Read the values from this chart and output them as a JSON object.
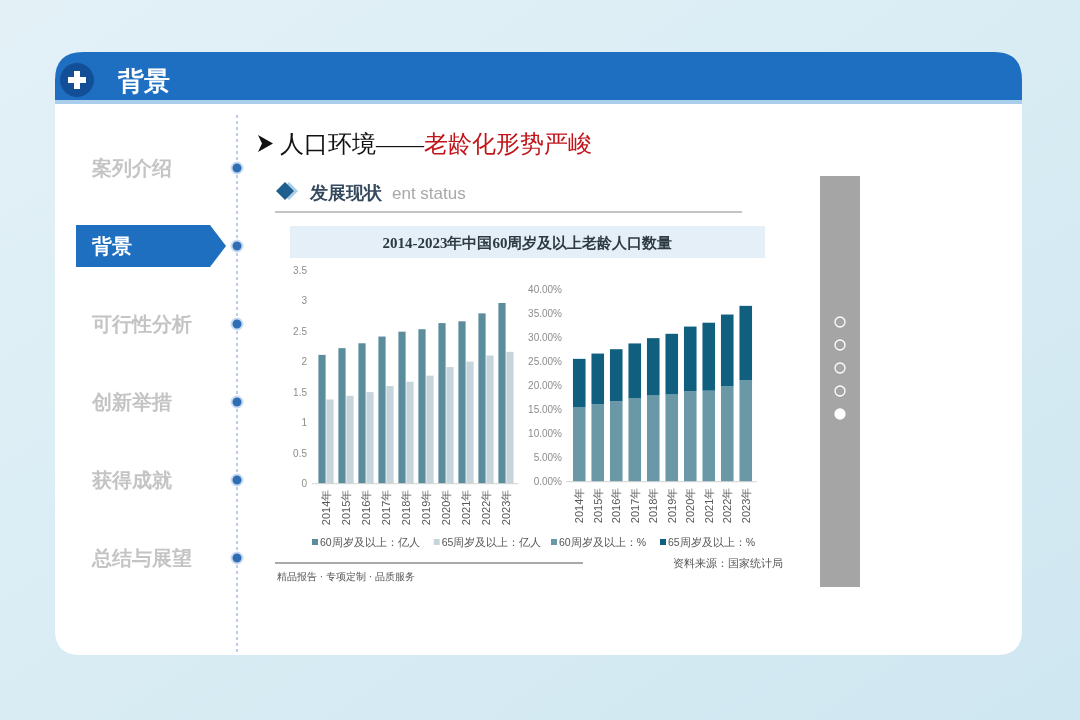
{
  "chart_data": [
    {
      "type": "other",
      "title": "背景",
      "subtitle": "人口环境——老龄化形势严峻",
      "annotations": [
        "案列介绍",
        "背景",
        "可行性分析",
        "创新举措",
        "获得成就",
        "总结与展望"
      ]
    },
    {
      "type": "bar",
      "title": "发展现状",
      "subtitle": "2014-2023年中国60周岁及以上老龄人口数量",
      "categories": [
        "2014年",
        "2015年",
        "2016年",
        "2017年",
        "2018年",
        "2019年",
        "2020年",
        "2021年",
        "2022年",
        "2023年"
      ],
      "series": [
        {
          "name": "60周岁及以上：亿人",
          "color": "#5b8d9c",
          "values": [
            2.11,
            2.22,
            2.3,
            2.41,
            2.49,
            2.53,
            2.63,
            2.66,
            2.79,
            2.96
          ]
        },
        {
          "name": "65周岁及以上：亿人",
          "color": "#c6d4db",
          "values": [
            1.38,
            1.44,
            1.5,
            1.6,
            1.67,
            1.77,
            1.91,
            2.0,
            2.1,
            2.16
          ]
        }
      ],
      "ylim": [
        0,
        3.5
      ],
      "yticks": [
        0,
        0.5,
        1,
        1.5,
        2,
        2.5,
        3,
        3.5
      ],
      "legend": "bottom",
      "annotations": [
        "ent status",
        "精品报告 · 专项定制 · 品质服务"
      ]
    },
    {
      "type": "bar",
      "stacked": true,
      "categories": [
        "2014年",
        "2015年",
        "2016年",
        "2017年",
        "2018年",
        "2019年",
        "2020年",
        "2021年",
        "2022年",
        "2023年"
      ],
      "series": [
        {
          "name": "60周岁及以上：%",
          "color": "#6a98a7",
          "values": [
            15.5,
            16.1,
            16.7,
            17.3,
            17.9,
            18.1,
            18.8,
            18.9,
            19.8,
            21.1
          ]
        },
        {
          "name": "65周岁及以上：%",
          "color": "#105f7f",
          "values": [
            10.0,
            10.5,
            10.8,
            11.4,
            11.9,
            12.6,
            13.4,
            14.1,
            14.9,
            15.4
          ]
        }
      ],
      "ylim": [
        0,
        40
      ],
      "yticks": [
        {
          "value": 0,
          "label": "0.00%"
        },
        {
          "value": 5,
          "label": "5.00%"
        },
        {
          "value": 10,
          "label": "10.00%"
        },
        {
          "value": 15,
          "label": "15.00%"
        },
        {
          "value": 20,
          "label": "20.00%"
        },
        {
          "value": 25,
          "label": "25.00%"
        },
        {
          "value": 30,
          "label": "30.00%"
        },
        {
          "value": 35,
          "label": "35.00%"
        },
        {
          "value": 40,
          "label": "40.00%"
        }
      ],
      "legend": "bottom",
      "annotations": [
        "资料来源：国家统计局"
      ]
    }
  ]
}
